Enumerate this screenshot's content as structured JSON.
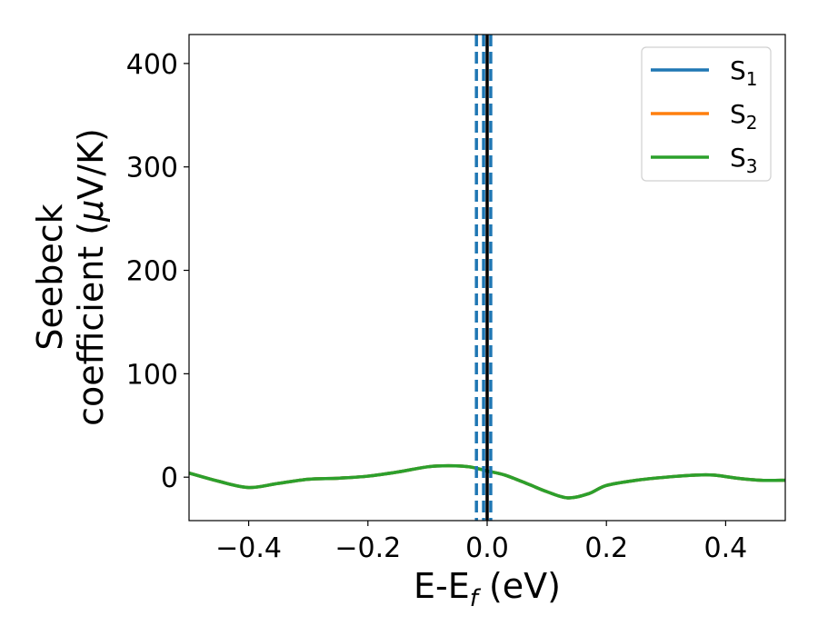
{
  "chart_data": {
    "type": "line",
    "title": "",
    "xlabel": "E-E",
    "xlabel_sub": "f",
    "xlabel_unit": " (eV)",
    "ylabel_line1": "Seebeck",
    "ylabel_line2": "coefficient  (",
    "ylabel_mu": "μ",
    "ylabel_unit": "V/K)",
    "xlim": [
      -0.5,
      0.5
    ],
    "ylim": [
      -42,
      428
    ],
    "xticks": [
      -0.4,
      -0.2,
      0.0,
      0.2,
      0.4
    ],
    "xtick_labels": [
      "−0.4",
      "−0.2",
      "0.0",
      "0.2",
      "0.4"
    ],
    "yticks": [
      0,
      100,
      200,
      300,
      400
    ],
    "ytick_labels": [
      "0",
      "100",
      "200",
      "300",
      "400"
    ],
    "grid": false,
    "legend_position": "top-right",
    "x": [
      -0.5,
      -0.45,
      -0.4,
      -0.35,
      -0.3,
      -0.25,
      -0.2,
      -0.15,
      -0.1,
      -0.065,
      -0.03,
      0.0,
      0.03,
      0.07,
      0.1,
      0.135,
      0.17,
      0.2,
      0.25,
      0.3,
      0.35,
      0.38,
      0.42,
      0.46,
      0.5
    ],
    "series": [
      {
        "name": "S",
        "sub": "1",
        "color": "#1f77b4",
        "values": [
          4,
          -4,
          -10,
          -6,
          -2,
          -1,
          1,
          5,
          10,
          11,
          10,
          6,
          2,
          -7,
          -14,
          -20,
          -16,
          -8,
          -3,
          0,
          2,
          2,
          -1,
          -3,
          -3
        ]
      },
      {
        "name": "S",
        "sub": "2",
        "color": "#ff7f0e",
        "values": [
          4,
          -4,
          -10,
          -6,
          -2,
          -1,
          1,
          5,
          10,
          11,
          10,
          6,
          2,
          -7,
          -14,
          -20,
          -16,
          -8,
          -3,
          0,
          2,
          2,
          -1,
          -3,
          -3
        ]
      },
      {
        "name": "S",
        "sub": "3",
        "color": "#2ca02c",
        "values": [
          4,
          -4,
          -10,
          -6,
          -2,
          -1,
          1,
          5,
          10,
          11,
          10,
          6,
          2,
          -7,
          -14,
          -20,
          -16,
          -8,
          -3,
          0,
          2,
          2,
          -1,
          -3,
          -3
        ]
      }
    ],
    "vlines": [
      {
        "x": -0.018,
        "style": "dashed",
        "color": "#1f77b4"
      },
      {
        "x": -0.006,
        "style": "dashed",
        "color": "#1f77b4"
      },
      {
        "x": 0.006,
        "style": "dashed",
        "color": "#1f77b4"
      },
      {
        "x": 0.0,
        "style": "solid",
        "color": "#000000"
      }
    ]
  }
}
